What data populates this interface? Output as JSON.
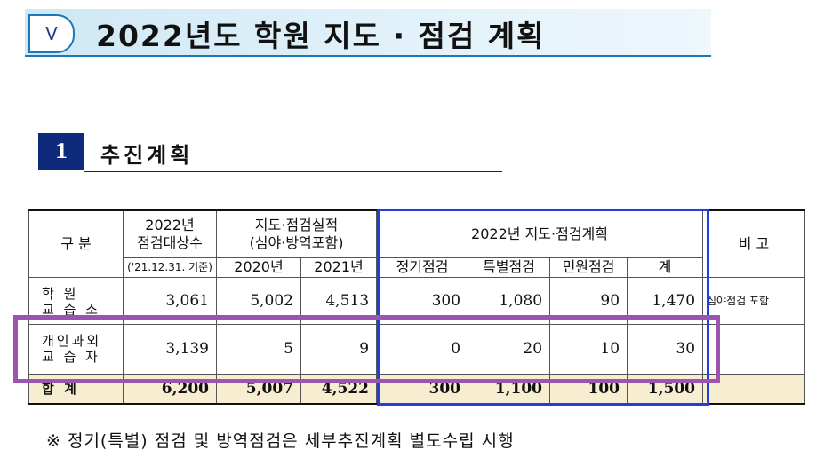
{
  "section": {
    "badge": "V",
    "title": "2022년도 학원 지도 · 점검 계획"
  },
  "subsection": {
    "number": "1",
    "title": "추진계획"
  },
  "table": {
    "header": {
      "category": "구 분",
      "target_line1": "2022년",
      "target_line2": "점검대상수",
      "target_basis": "('21.12.31. 기준)",
      "results_line1": "지도·점검실적",
      "results_line2": "(심야·방역포함)",
      "year_2020": "2020년",
      "year_2021": "2021년",
      "plan": "2022년 지도·점검계획",
      "plan_regular": "정기점검",
      "plan_special": "특별점검",
      "plan_complaint": "민원점검",
      "plan_total": "계",
      "remarks": "비 고"
    },
    "rows": [
      {
        "label_line1": "학 원",
        "label_line2": "교 습 소",
        "target": "3,061",
        "y2020": "5,002",
        "y2021": "4,513",
        "regular": "300",
        "special": "1,080",
        "complaint": "90",
        "total": "1,470",
        "remarks": "심야점검 포함"
      },
      {
        "label_line1": "개인과외",
        "label_line2": "교 습 자",
        "target": "3,139",
        "y2020": "5",
        "y2021": "9",
        "regular": "0",
        "special": "20",
        "complaint": "10",
        "total": "30",
        "remarks": ""
      },
      {
        "label": "합 계",
        "target": "6,200",
        "y2020": "5,007",
        "y2021": "4,522",
        "regular": "300",
        "special": "1,100",
        "complaint": "100",
        "total": "1,500",
        "remarks": ""
      }
    ]
  },
  "footnote": "※ 정기(특별) 점검 및 방역점검은 세부추진계획 별도수립 시행",
  "colors": {
    "section_band": "#cfe8f5",
    "section_line": "#1b78b8",
    "sub_badge": "#0f2a7a",
    "total_row": "#f7edd0",
    "plan_box": "#1f3fe0",
    "highlight_box": "#9b55b0"
  }
}
